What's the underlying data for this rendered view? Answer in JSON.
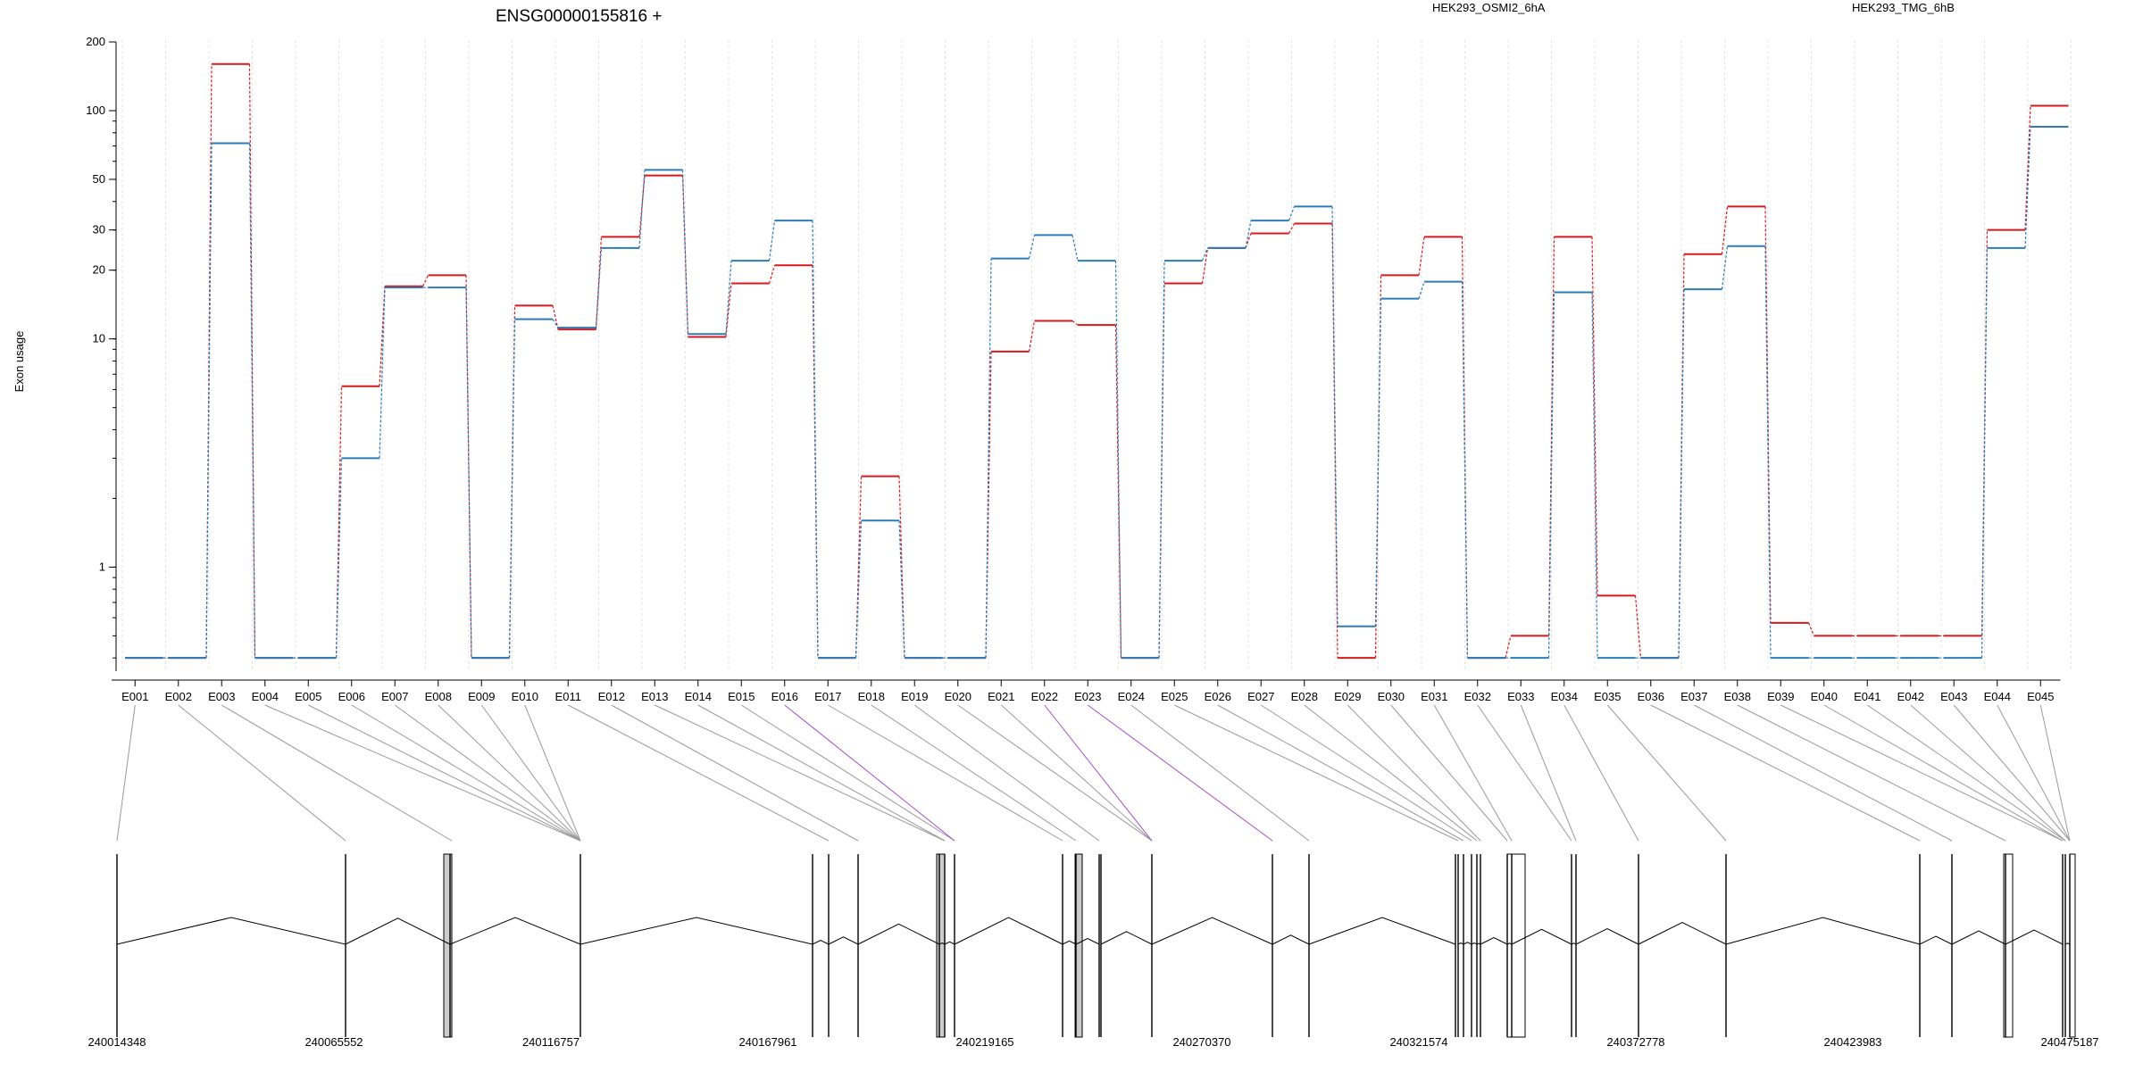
{
  "chart_data": {
    "type": "line",
    "title": "ENSG00000155816 +",
    "ylabel": "Exon usage",
    "xlabel": "",
    "yscale": "log",
    "ylim": [
      0.35,
      200
    ],
    "yticks": [
      {
        "value": 1,
        "label": "1"
      },
      {
        "value": 10,
        "label": "10"
      },
      {
        "value": 20,
        "label": "20"
      },
      {
        "value": 30,
        "label": "30"
      },
      {
        "value": 50,
        "label": "50"
      },
      {
        "value": 100,
        "label": "100"
      },
      {
        "value": 200,
        "label": "200"
      }
    ],
    "grid": "vertical dashed lines at exon boundaries",
    "categories": [
      "E001",
      "E002",
      "E003",
      "E004",
      "E005",
      "E006",
      "E007",
      "E008",
      "E009",
      "E010",
      "E011",
      "E012",
      "E013",
      "E014",
      "E015",
      "E016",
      "E017",
      "E018",
      "E019",
      "E020",
      "E021",
      "E022",
      "E023",
      "E024",
      "E025",
      "E026",
      "E027",
      "E028",
      "E029",
      "E030",
      "E031",
      "E032",
      "E033",
      "E034",
      "E035",
      "E036",
      "E037",
      "E038",
      "E039",
      "E040",
      "E041",
      "E042",
      "E043",
      "E044",
      "E045"
    ],
    "series": [
      {
        "name": "HEK293_OSMI2_6hA",
        "color": "#d7191c",
        "values": [
          0.4,
          0.4,
          160,
          0.4,
          0.4,
          6.2,
          17,
          19,
          0.4,
          14,
          11,
          28,
          52,
          10.2,
          17.5,
          21,
          0.4,
          2.5,
          0.4,
          0.4,
          8.8,
          12,
          11.5,
          0.4,
          17.5,
          25,
          29,
          32,
          0.4,
          19,
          28,
          0.4,
          0.5,
          28,
          0.75,
          0.4,
          23.5,
          38,
          0.57,
          0.5,
          0.5,
          0.5,
          0.5,
          30,
          105
        ]
      },
      {
        "name": "HEK293_TMG_6hB",
        "color": "#2c7bb6",
        "values": [
          0.4,
          0.4,
          72,
          0.4,
          0.4,
          3,
          16.8,
          16.8,
          0.4,
          12.2,
          11.2,
          25,
          55,
          10.5,
          22,
          33,
          0.4,
          1.6,
          0.4,
          0.4,
          22.5,
          28.5,
          22,
          0.4,
          22,
          25,
          33,
          38,
          0.55,
          15,
          17.8,
          0.4,
          0.4,
          16,
          0.4,
          0.4,
          16.5,
          25.5,
          0.4,
          0.4,
          0.4,
          0.4,
          0.4,
          25,
          85
        ]
      }
    ],
    "genomic_axis": {
      "ticks": [
        "240014348",
        "240065552",
        "240116757",
        "240167961",
        "240219165",
        "240270370",
        "240321574",
        "240372778",
        "240423983",
        "240475187"
      ]
    },
    "highlighted_exons": [
      "E016",
      "E022",
      "E023"
    ],
    "highlight_color": "#a64dc9"
  }
}
